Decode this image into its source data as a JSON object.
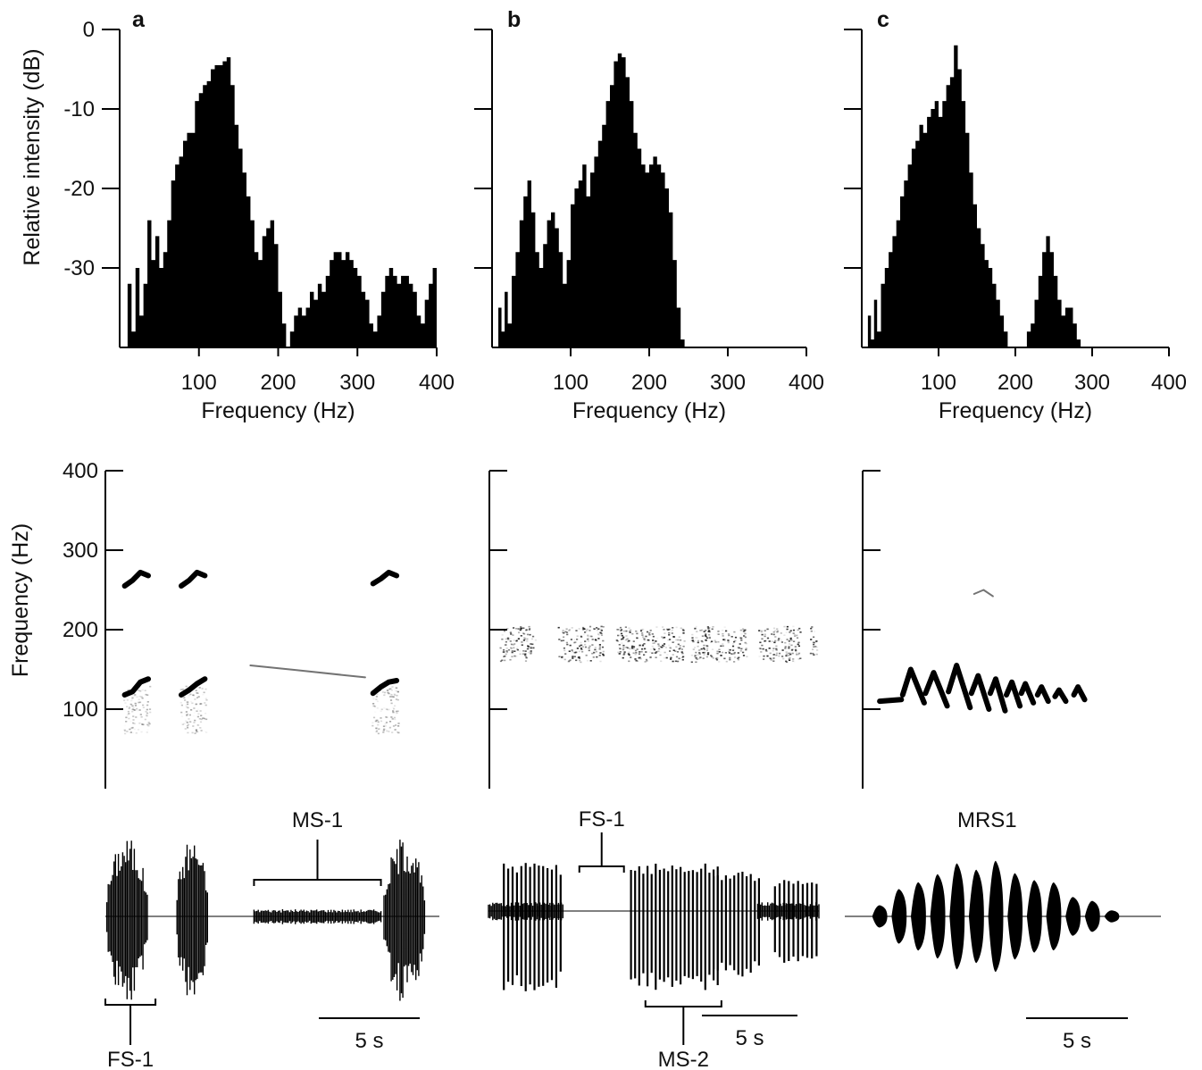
{
  "colors": {
    "ink": "#000000",
    "background": "#ffffff"
  },
  "chart_data": [
    {
      "panel": "a",
      "type": "area",
      "xlabel": "Frequency (Hz)",
      "ylabel": "Relative intensity (dB)",
      "xlim": [
        0,
        400
      ],
      "ylim": [
        -40,
        0
      ],
      "xticks": [
        "100",
        "200",
        "300",
        "400"
      ],
      "yticks": [
        "0",
        "-10",
        "-20",
        "-30"
      ],
      "x": [
        3,
        10,
        15,
        20,
        25,
        30,
        35,
        40,
        45,
        50,
        55,
        60,
        65,
        70,
        75,
        80,
        85,
        90,
        95,
        100,
        105,
        110,
        115,
        120,
        125,
        130,
        135,
        140,
        145,
        150,
        155,
        160,
        165,
        170,
        175,
        180,
        185,
        190,
        195,
        200,
        205,
        210,
        215,
        220,
        225,
        230,
        235,
        240,
        245,
        250,
        255,
        260,
        265,
        270,
        275,
        280,
        285,
        290,
        295,
        300,
        305,
        310,
        315,
        320,
        325,
        330,
        335,
        340,
        345,
        350,
        355,
        360,
        365,
        370,
        375,
        380,
        385,
        390,
        395,
        400
      ],
      "values": [
        -40,
        -32,
        -38,
        -30,
        -36,
        -32,
        -24,
        -29,
        -26,
        -30,
        -28,
        -24,
        -19,
        -17,
        -16,
        -14,
        -13,
        -13,
        -9,
        -8,
        -7,
        -6.5,
        -5,
        -4.5,
        -4.5,
        -4,
        -3.5,
        -7,
        -12,
        -15,
        -18,
        -21,
        -24,
        -28,
        -29,
        -26,
        -25,
        -24,
        -27,
        -33,
        -37,
        -40,
        -38,
        -36,
        -35,
        -36,
        -35,
        -33,
        -34,
        -32,
        -33,
        -31,
        -29,
        -28,
        -28,
        -29,
        -28,
        -29,
        -30,
        -31,
        -33,
        -34,
        -37,
        -38,
        -36,
        -33,
        -31,
        -30,
        -31,
        -32,
        -31,
        -31,
        -32,
        -33,
        -36,
        -37,
        -34,
        -32,
        -30,
        -28
      ]
    },
    {
      "panel": "b",
      "type": "area",
      "xlabel": "Frequency (Hz)",
      "ylabel": "",
      "xlim": [
        0,
        400
      ],
      "ylim": [
        -40,
        0
      ],
      "xticks": [
        "100",
        "200",
        "300",
        "400"
      ],
      "yticks": [
        "",
        "",
        "",
        ""
      ],
      "x": [
        3,
        8,
        12,
        16,
        20,
        25,
        30,
        35,
        40,
        45,
        50,
        55,
        60,
        65,
        70,
        75,
        80,
        85,
        90,
        95,
        100,
        105,
        110,
        115,
        120,
        125,
        130,
        135,
        140,
        145,
        150,
        155,
        160,
        165,
        170,
        175,
        180,
        185,
        190,
        195,
        200,
        205,
        210,
        215,
        220,
        225,
        230,
        235,
        240,
        245,
        250,
        260,
        280,
        300,
        320,
        340,
        360,
        380,
        400
      ],
      "values": [
        -40,
        -35,
        -38,
        -33,
        -37,
        -31,
        -28,
        -24,
        -21,
        -19,
        -23,
        -28,
        -30,
        -27,
        -24,
        -23,
        -25,
        -28,
        -32,
        -29,
        -22,
        -20,
        -19,
        -17,
        -21,
        -18,
        -16,
        -14,
        -12,
        -9,
        -7,
        -4,
        -3,
        -3.5,
        -6,
        -9,
        -13,
        -15,
        -17,
        -18,
        -17,
        -16,
        -17,
        -18,
        -20,
        -23,
        -29,
        -35,
        -39,
        -40,
        -40,
        -40,
        -40,
        -40,
        -40,
        -40,
        -40,
        -40,
        -40
      ]
    },
    {
      "panel": "c",
      "type": "area",
      "xlabel": "Frequency (Hz)",
      "ylabel": "",
      "xlim": [
        0,
        400
      ],
      "ylim": [
        -40,
        0
      ],
      "xticks": [
        "100",
        "200",
        "300",
        "400"
      ],
      "yticks": [
        "",
        "",
        "",
        ""
      ],
      "x": [
        3,
        8,
        12,
        16,
        20,
        25,
        30,
        35,
        40,
        45,
        50,
        55,
        60,
        65,
        70,
        75,
        80,
        85,
        90,
        95,
        100,
        105,
        110,
        115,
        120,
        125,
        130,
        135,
        140,
        145,
        150,
        155,
        160,
        165,
        170,
        175,
        180,
        185,
        190,
        195,
        200,
        205,
        210,
        215,
        220,
        225,
        230,
        235,
        240,
        245,
        250,
        255,
        260,
        265,
        270,
        275,
        280,
        285,
        290,
        295,
        300,
        320,
        340,
        360,
        380,
        400
      ],
      "values": [
        -40,
        -36,
        -39,
        -34,
        -38,
        -32,
        -30,
        -28,
        -26,
        -24,
        -21,
        -19,
        -17,
        -15,
        -14,
        -12,
        -13,
        -11,
        -10,
        -9,
        -11,
        -9,
        -7,
        -6,
        -2,
        -5,
        -9,
        -13,
        -18,
        -22,
        -25,
        -27,
        -29,
        -30,
        -32,
        -34,
        -36,
        -38,
        -40,
        -40,
        -40,
        -40,
        -40,
        -38,
        -37,
        -34,
        -31,
        -28,
        -26,
        -28,
        -31,
        -34,
        -36,
        -35,
        -35,
        -37,
        -39,
        -40,
        -40,
        -40,
        -40,
        -40,
        -40,
        -40,
        -40,
        -40
      ]
    },
    {
      "panel": "a",
      "type": "heatmap",
      "ylabel": "Frequency (Hz)",
      "ylim": [
        0,
        400
      ],
      "yticks": [
        "400",
        "300",
        "200",
        "100"
      ],
      "time_range": [
        0,
        20
      ],
      "traces": [
        {
          "t": [
            1.0,
            1.5,
            2.0,
            2.5
          ],
          "f": [
            255,
            262,
            272,
            268
          ]
        },
        {
          "t": [
            4.6,
            5.1,
            5.6,
            6.1
          ],
          "f": [
            255,
            262,
            272,
            268
          ]
        },
        {
          "t": [
            16.8,
            17.3,
            17.8,
            18.3
          ],
          "f": [
            258,
            264,
            272,
            268
          ]
        },
        {
          "t": [
            1.0,
            1.5,
            2.0,
            2.5
          ],
          "f": [
            118,
            122,
            134,
            138
          ]
        },
        {
          "t": [
            4.6,
            5.1,
            5.6,
            6.1
          ],
          "f": [
            118,
            124,
            132,
            138
          ]
        },
        {
          "t": [
            16.8,
            17.3,
            17.8,
            18.3
          ],
          "f": [
            120,
            128,
            134,
            136
          ]
        },
        {
          "t": [
            9.0,
            12.0,
            16.3
          ],
          "f": [
            155,
            149,
            140
          ]
        }
      ],
      "bands": [
        {
          "t0": 0.9,
          "t1": 2.6,
          "f0": 70,
          "f1": 130
        },
        {
          "t0": 4.5,
          "t1": 6.2,
          "f0": 70,
          "f1": 130
        },
        {
          "t0": 16.7,
          "t1": 18.4,
          "f0": 70,
          "f1": 130
        }
      ]
    },
    {
      "panel": "b",
      "type": "heatmap",
      "ylabel": "",
      "ylim": [
        0,
        400
      ],
      "yticks": [
        "",
        "",
        "",
        ""
      ],
      "time_range": [
        0,
        20
      ],
      "bands": [
        {
          "t0": 0.4,
          "t1": 2.6,
          "f0": 160,
          "f1": 205
        },
        {
          "t0": 4.0,
          "t1": 6.8,
          "f0": 160,
          "f1": 205
        },
        {
          "t0": 7.6,
          "t1": 11.8,
          "f0": 160,
          "f1": 205
        },
        {
          "t0": 12.2,
          "t1": 15.7,
          "f0": 160,
          "f1": 205
        },
        {
          "t0": 16.4,
          "t1": 19.0,
          "f0": 160,
          "f1": 205
        },
        {
          "t0": 19.6,
          "t1": 20.0,
          "f0": 160,
          "f1": 205
        }
      ]
    },
    {
      "panel": "c",
      "type": "heatmap",
      "ylabel": "",
      "ylim": [
        0,
        400
      ],
      "yticks": [
        "",
        "",
        "",
        ""
      ],
      "time_range": [
        0,
        20
      ],
      "traces": [
        {
          "t": [
            1.0,
            2.6
          ],
          "f": [
            110,
            112
          ]
        },
        {
          "t": [
            2.7,
            3.3,
            4.3
          ],
          "f": [
            118,
            150,
            108
          ]
        },
        {
          "t": [
            4.4,
            5.0,
            6.0
          ],
          "f": [
            120,
            146,
            104
          ]
        },
        {
          "t": [
            6.1,
            6.7,
            7.7
          ],
          "f": [
            122,
            155,
            102
          ]
        },
        {
          "t": [
            7.8,
            8.3,
            9.1
          ],
          "f": [
            120,
            142,
            100
          ]
        },
        {
          "t": [
            9.2,
            9.6,
            10.3
          ],
          "f": [
            120,
            138,
            98
          ]
        },
        {
          "t": [
            10.4,
            10.8,
            11.4
          ],
          "f": [
            118,
            134,
            104
          ]
        },
        {
          "t": [
            11.5,
            11.8,
            12.4
          ],
          "f": [
            120,
            132,
            108
          ]
        },
        {
          "t": [
            12.7,
            13.0,
            13.5
          ],
          "f": [
            118,
            128,
            110
          ]
        },
        {
          "t": [
            14.0,
            14.3,
            14.8
          ],
          "f": [
            116,
            124,
            110
          ]
        },
        {
          "t": [
            15.4,
            15.7,
            16.2
          ],
          "f": [
            118,
            128,
            112
          ]
        },
        {
          "t": [
            8.0,
            8.7,
            9.4
          ],
          "f": [
            245,
            250,
            242
          ]
        }
      ]
    },
    {
      "panel": "a",
      "type": "line",
      "time_range": [
        0,
        20
      ],
      "bursts": [
        {
          "t0": 0.0,
          "t1": 2.6,
          "amp": 0.9
        },
        {
          "t0": 4.2,
          "t1": 6.2,
          "amp": 0.9
        },
        {
          "t0": 8.9,
          "t1": 16.5,
          "amp": 0.08
        },
        {
          "t0": 16.6,
          "t1": 19.2,
          "amp": 0.9
        }
      ],
      "annotations": [
        {
          "label": "FS-1",
          "t0": 0.0,
          "t1": 3.0,
          "side": "below"
        },
        {
          "label": "MS-1",
          "t0": 8.9,
          "t1": 16.5,
          "side": "above"
        }
      ],
      "scale_bar": {
        "label": "5 s",
        "seconds": 5
      }
    },
    {
      "panel": "b",
      "type": "line",
      "time_range": [
        0,
        20
      ],
      "bursts": [
        {
          "t0": 0.0,
          "t1": 4.5,
          "amp": 0.1
        },
        {
          "t0": 0.8,
          "t1": 4.5,
          "amp": 0.9,
          "pulses": 14
        },
        {
          "t0": 8.5,
          "t1": 14.0,
          "amp": 0.9,
          "pulses": 22
        },
        {
          "t0": 13.5,
          "t1": 16.5,
          "amp": 0.75,
          "pulses": 12
        },
        {
          "t0": 16.3,
          "t1": 20.0,
          "amp": 0.1
        },
        {
          "t0": 17.2,
          "t1": 20.0,
          "amp": 0.6,
          "pulses": 10
        }
      ],
      "annotations": [
        {
          "label": "FS-1",
          "t0": 5.5,
          "t1": 8.2,
          "side": "above"
        },
        {
          "label": "MS-2",
          "t0": 9.5,
          "t1": 14.1,
          "side": "below"
        }
      ],
      "scale_bar": {
        "label": "5 s",
        "seconds": 5
      }
    },
    {
      "panel": "c",
      "type": "line",
      "time_range": [
        0,
        20
      ],
      "bursts": [
        {
          "t0": 1.6,
          "t1": 17.5,
          "amp": 0.9,
          "pulses": 13,
          "taper": true
        }
      ],
      "annotations": [
        {
          "label": "MRS1",
          "t0": 9.0,
          "t1": 9.0,
          "side": "above"
        }
      ],
      "scale_bar": {
        "label": "5 s",
        "seconds": 5
      }
    }
  ]
}
